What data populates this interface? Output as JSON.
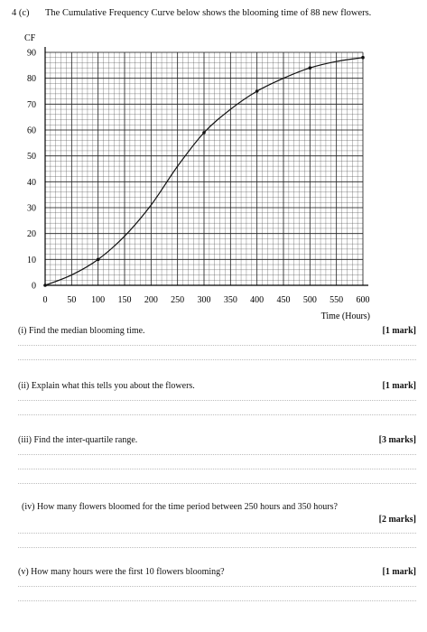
{
  "question": {
    "number": "4 (c)",
    "intro": "The Cumulative Frequency Curve below shows the blooming time of 88 new flowers."
  },
  "chart_data": {
    "type": "line",
    "ylabel": "CF",
    "xlabel": "Time (Hours)",
    "xlim": [
      0,
      600
    ],
    "ylim": [
      0,
      90
    ],
    "x_ticks": [
      0,
      50,
      100,
      150,
      200,
      250,
      300,
      350,
      400,
      450,
      500,
      550,
      600
    ],
    "y_ticks": [
      0,
      10,
      20,
      30,
      40,
      50,
      60,
      70,
      80,
      90
    ],
    "x_tick_labels": [
      "0",
      "50",
      "100",
      "150",
      "200",
      "250",
      "300",
      "350",
      "400",
      "450",
      "500",
      "550",
      "600"
    ],
    "y_tick_labels": [
      "0",
      "10",
      "20",
      "30",
      "40",
      "50",
      "60",
      "70",
      "80",
      "90"
    ],
    "grid": true,
    "marked_points": [
      {
        "x": 0,
        "y": 0
      },
      {
        "x": 100,
        "y": 10
      },
      {
        "x": 300,
        "y": 59
      },
      {
        "x": 400,
        "y": 75
      },
      {
        "x": 500,
        "y": 84
      },
      {
        "x": 600,
        "y": 88
      }
    ],
    "curve": [
      {
        "x": 0,
        "y": 0
      },
      {
        "x": 50,
        "y": 4
      },
      {
        "x": 100,
        "y": 10
      },
      {
        "x": 150,
        "y": 19
      },
      {
        "x": 200,
        "y": 31
      },
      {
        "x": 250,
        "y": 46
      },
      {
        "x": 300,
        "y": 59
      },
      {
        "x": 350,
        "y": 68
      },
      {
        "x": 400,
        "y": 75
      },
      {
        "x": 450,
        "y": 80
      },
      {
        "x": 500,
        "y": 84
      },
      {
        "x": 550,
        "y": 86.5
      },
      {
        "x": 600,
        "y": 88
      }
    ]
  },
  "questions": [
    {
      "text": "(i) Find the median blooming time.",
      "marks": "[1 mark]"
    },
    {
      "text": "(ii) Explain what this tells you about the flowers.",
      "marks": "[1 mark]"
    },
    {
      "text": "(iii) Find the inter-quartile range.",
      "marks": "[3 marks]"
    },
    {
      "text": "(iv) How many flowers bloomed for the time period between 250 hours and 350 hours?",
      "marks": "[2 marks]"
    },
    {
      "text": "(v) How many hours were the first 10 flowers blooming?",
      "marks": "[1 mark]"
    }
  ],
  "colors": {
    "ink": "#111111",
    "grid": "#555555",
    "answer_line": "#bdbdbd"
  }
}
